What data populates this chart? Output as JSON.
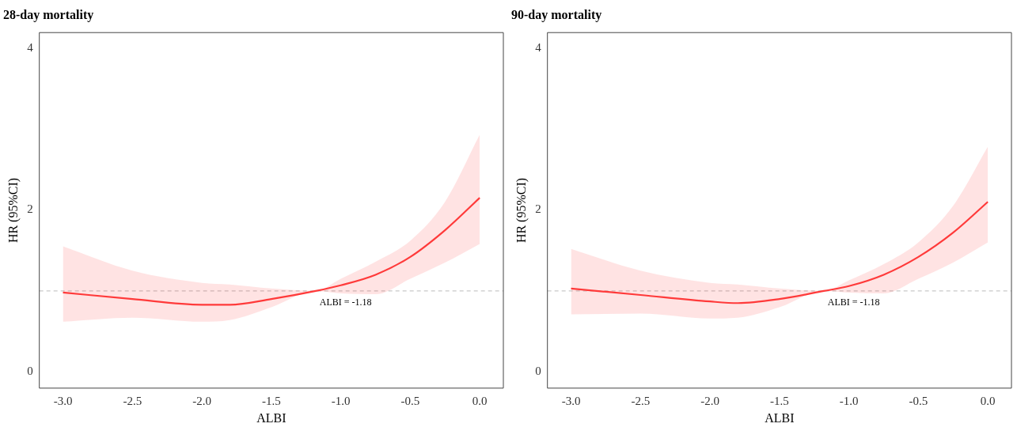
{
  "chart_data": [
    {
      "type": "line",
      "title": "28-day mortality",
      "xlabel": "ALBI",
      "ylabel": "HR (95%CI)",
      "x": [
        -3,
        -2.5,
        -2,
        -1.8,
        -1.5,
        -1.18,
        -1.0,
        -0.75,
        -0.5,
        -0.25,
        0
      ],
      "series": [
        {
          "color": "#ff3b3b",
          "values": [
            0.98,
            0.9,
            0.83,
            0.83,
            0.9,
            1.0,
            1.07,
            1.2,
            1.42,
            1.75,
            2.15
          ],
          "lower": [
            0.62,
            0.67,
            0.62,
            0.64,
            0.8,
            1.0,
            0.97,
            0.96,
            1.15,
            1.35,
            1.58
          ],
          "upper": [
            1.55,
            1.25,
            1.1,
            1.08,
            1.03,
            1.0,
            1.15,
            1.36,
            1.62,
            2.1,
            2.93
          ]
        }
      ],
      "xlim": [
        -3.17,
        0.17
      ],
      "ylim": [
        -0.2,
        4.19
      ],
      "xticks": [
        {
          "value": -3,
          "label": "-3.0"
        },
        {
          "value": -2.5,
          "label": "-2.5"
        },
        {
          "value": -2,
          "label": "-2.0"
        },
        {
          "value": -1.5,
          "label": "-1.5"
        },
        {
          "value": -1,
          "label": "-1.0"
        },
        {
          "value": -0.5,
          "label": "-0.5"
        },
        {
          "value": 0,
          "label": "0.0"
        }
      ],
      "yticks": [
        0,
        2,
        4
      ],
      "ref_lines": [
        {
          "axis": "y",
          "value": 1,
          "color": "#bbbbbb",
          "line_style": "dashed"
        }
      ],
      "annotations": [
        "ALBI = -1.18"
      ],
      "grid": false,
      "legend": false
    },
    {
      "type": "line",
      "title": "90-day mortality",
      "xlabel": "ALBI",
      "ylabel": "HR (95%CI)",
      "x": [
        -3,
        -2.5,
        -2,
        -1.8,
        -1.5,
        -1.18,
        -1.0,
        -0.75,
        -0.5,
        -0.25,
        0
      ],
      "series": [
        {
          "color": "#ff3b3b",
          "values": [
            1.03,
            0.95,
            0.87,
            0.85,
            0.9,
            1.0,
            1.06,
            1.2,
            1.42,
            1.72,
            2.1
          ],
          "lower": [
            0.71,
            0.72,
            0.66,
            0.67,
            0.8,
            1.0,
            0.98,
            0.97,
            1.15,
            1.35,
            1.6
          ],
          "upper": [
            1.52,
            1.25,
            1.1,
            1.08,
            1.03,
            1.0,
            1.13,
            1.33,
            1.6,
            2.05,
            2.78
          ]
        }
      ],
      "xlim": [
        -3.17,
        0.17
      ],
      "ylim": [
        -0.2,
        4.19
      ],
      "xticks": [
        {
          "value": -3,
          "label": "-3.0"
        },
        {
          "value": -2.5,
          "label": "-2.5"
        },
        {
          "value": -2,
          "label": "-2.0"
        },
        {
          "value": -1.5,
          "label": "-1.5"
        },
        {
          "value": -1,
          "label": "-1.0"
        },
        {
          "value": -0.5,
          "label": "-0.5"
        },
        {
          "value": 0,
          "label": "0.0"
        }
      ],
      "yticks": [
        0,
        2,
        4
      ],
      "ref_lines": [
        {
          "axis": "y",
          "value": 1,
          "color": "#bbbbbb",
          "line_style": "dashed"
        }
      ],
      "annotations": [
        "ALBI = -1.18"
      ],
      "grid": false,
      "legend": false
    }
  ]
}
